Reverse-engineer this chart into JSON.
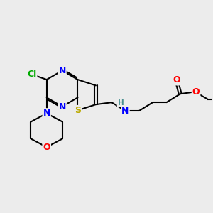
{
  "bg_color": "#ececec",
  "atom_colors": {
    "N": "#0000ff",
    "O": "#ff0000",
    "S": "#bbaa00",
    "Cl": "#00aa00",
    "C": "#000000",
    "H": "#4a9090"
  }
}
